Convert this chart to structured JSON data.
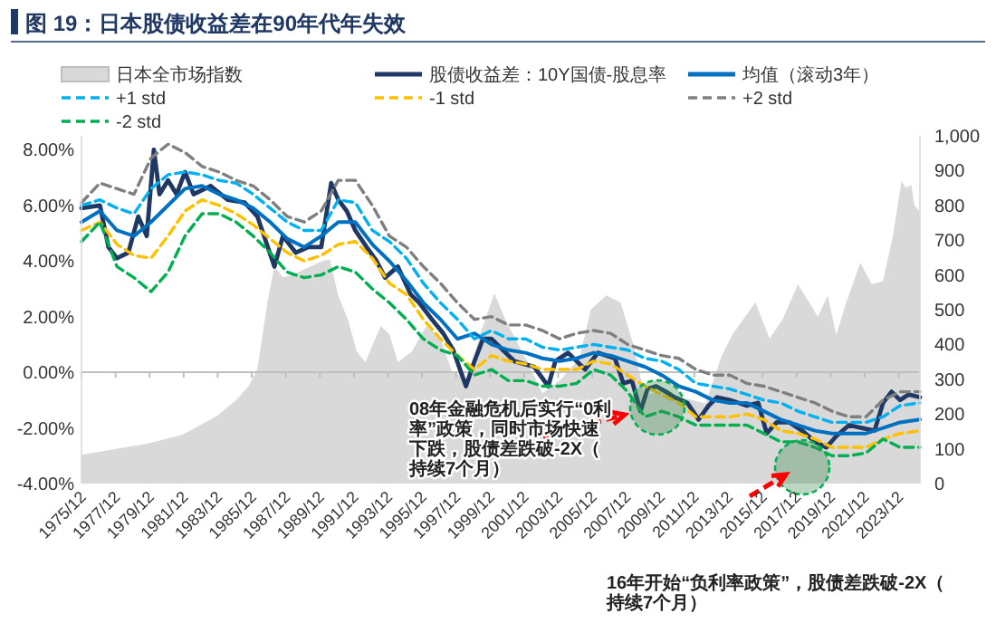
{
  "chart_data": {
    "type": "line",
    "title": "图 19：日本股债收益差在90年代年失效",
    "xlim": [
      "1975-12",
      "2025-03"
    ],
    "ylim": [
      -4,
      8.5
    ],
    "y2lim": [
      0,
      1000
    ],
    "xticks": [
      {
        "value": "1975-12",
        "label": "1975/12"
      },
      {
        "value": "1977-12",
        "label": "1977/12"
      },
      {
        "value": "1979-12",
        "label": "1979/12"
      },
      {
        "value": "1981-12",
        "label": "1981/12"
      },
      {
        "value": "1983-12",
        "label": "1983/12"
      },
      {
        "value": "1985-12",
        "label": "1985/12"
      },
      {
        "value": "1987-12",
        "label": "1987/12"
      },
      {
        "value": "1989-12",
        "label": "1989/12"
      },
      {
        "value": "1991-12",
        "label": "1991/12"
      },
      {
        "value": "1993-12",
        "label": "1993/12"
      },
      {
        "value": "1995-12",
        "label": "1995/12"
      },
      {
        "value": "1997-12",
        "label": "1997/12"
      },
      {
        "value": "1999-12",
        "label": "1999/12"
      },
      {
        "value": "2001-12",
        "label": "2001/12"
      },
      {
        "value": "2003-12",
        "label": "2003/12"
      },
      {
        "value": "2005-12",
        "label": "2005/12"
      },
      {
        "value": "2007-12",
        "label": "2007/12"
      },
      {
        "value": "2009-12",
        "label": "2009/12"
      },
      {
        "value": "2011-12",
        "label": "2011/12"
      },
      {
        "value": "2013-12",
        "label": "2013/12"
      },
      {
        "value": "2015-12",
        "label": "2015/12"
      },
      {
        "value": "2017-12",
        "label": "2017/12"
      },
      {
        "value": "2019-12",
        "label": "2019/12"
      },
      {
        "value": "2021-12",
        "label": "2021/12"
      },
      {
        "value": "2023-12",
        "label": "2023/12"
      }
    ],
    "yticks": [
      {
        "value": -4,
        "label": "-4.00%"
      },
      {
        "value": -2,
        "label": "-2.00%"
      },
      {
        "value": 0,
        "label": "0.00%"
      },
      {
        "value": 2,
        "label": "2.00%"
      },
      {
        "value": 4,
        "label": "4.00%"
      },
      {
        "value": 6,
        "label": "6.00%"
      },
      {
        "value": 8,
        "label": "8.00%"
      }
    ],
    "y2ticks": [
      0,
      100,
      200,
      300,
      400,
      500,
      600,
      700,
      800,
      900,
      {
        "value": 1000,
        "label": "1,000"
      }
    ],
    "legend": "top",
    "grid": false,
    "marker": "none",
    "ref_lines": [
      {
        "axis": "y",
        "value": 0,
        "color": "#bfbfbf"
      }
    ],
    "annotations": [
      "08年金融危机后实行“0利率”政策，同时市场快速下跌，股债差跌破-2X（持续7个月）",
      "16年开始“负利率政策”，股债差跌破-2X（持续7个月）"
    ],
    "series": [
      {
        "name": "日本全市场指数",
        "type": "area",
        "axis": "y2",
        "color": "#d9d9d9",
        "x": [
          "1975-12",
          "1979-11",
          "1981-11",
          "1983-11",
          "1985-01",
          "1985-10",
          "1986-04",
          "1986-11",
          "1987-04",
          "1987-10",
          "1988-05",
          "1989-03",
          "1990-02",
          "1990-07",
          "1991-01",
          "1991-08",
          "1992-02",
          "1992-08",
          "1993-07",
          "1994-01",
          "1994-07",
          "1995-05",
          "1996-03",
          "1997-01",
          "1997-09",
          "1998-08",
          "1999-05",
          "2000-03",
          "2000-11",
          "2002-01",
          "2003-01",
          "2004-02",
          "2005-03",
          "2005-11",
          "2006-10",
          "2007-08",
          "2008-05",
          "2009-01",
          "2010-01",
          "2011-01",
          "2012-08",
          "2013-07",
          "2014-03",
          "2015-07",
          "2016-05",
          "2017-02",
          "2018-01",
          "2018-09",
          "2019-03",
          "2019-10",
          "2020-04",
          "2020-11",
          "2021-09",
          "2022-05",
          "2023-01",
          "2023-08",
          "2024-02",
          "2024-05",
          "2024-09",
          "2024-11",
          "2025-03"
        ],
        "values": [
          83,
          115,
          140,
          193,
          240,
          281,
          330,
          520,
          625,
          593,
          600,
          620,
          640,
          645,
          541,
          469,
          380,
          349,
          453,
          430,
          349,
          380,
          453,
          420,
          323,
          300,
          430,
          547,
          470,
          360,
          260,
          300,
          360,
          500,
          541,
          520,
          400,
          250,
          270,
          250,
          230,
          365,
          430,
          521,
          417,
          470,
          573,
          520,
          479,
          541,
          427,
          520,
          635,
          573,
          583,
          713,
          870,
          850,
          859,
          800,
          781
        ]
      },
      {
        "name": "股债收益差：10Y国债-股息率",
        "color": "#1f3864",
        "line_style": "solid",
        "x": [
          "1975-12",
          "1977-01",
          "1977-07",
          "1978-01",
          "1978-09",
          "1979-04",
          "1979-10",
          "1980-03",
          "1980-07",
          "1981-01",
          "1981-07",
          "1982-01",
          "1982-07",
          "1983-07",
          "1984-07",
          "1985-07",
          "1986-04",
          "1986-10",
          "1987-04",
          "1987-10",
          "1988-07",
          "1989-04",
          "1990-01",
          "1990-08",
          "1991-01",
          "1991-07",
          "1992-01",
          "1992-09",
          "1993-04",
          "1993-10",
          "1994-07",
          "1995-04",
          "1995-10",
          "1996-07",
          "1997-03",
          "1997-10",
          "1998-07",
          "1999-01",
          "1999-07",
          "2000-01",
          "2001-05",
          "2002-07",
          "2003-05",
          "2003-10",
          "2004-07",
          "2005-07",
          "2006-04",
          "2007-04",
          "2007-10",
          "2008-04",
          "2008-10",
          "2009-03",
          "2009-09",
          "2010-04",
          "2010-10",
          "2011-07",
          "2012-03",
          "2012-10",
          "2013-04",
          "2014-01",
          "2015-01",
          "2015-09",
          "2016-03",
          "2016-10",
          "2017-07",
          "2018-04",
          "2019-01",
          "2019-09",
          "2020-04",
          "2021-01",
          "2021-10",
          "2022-07",
          "2023-01",
          "2023-07",
          "2024-01",
          "2024-07",
          "2025-03"
        ],
        "values": [
          5.9,
          6.0,
          4.5,
          4.1,
          4.3,
          5.6,
          4.9,
          8.0,
          6.4,
          6.9,
          6.4,
          7.2,
          6.4,
          6.7,
          6.2,
          6.1,
          5.6,
          4.7,
          3.8,
          4.9,
          4.3,
          4.5,
          4.5,
          6.8,
          6.2,
          5.8,
          5.1,
          4.5,
          4.0,
          3.4,
          3.8,
          2.8,
          2.5,
          1.9,
          1.4,
          0.8,
          -0.5,
          0.4,
          1.2,
          1.2,
          0.4,
          0.2,
          -0.5,
          0.4,
          0.7,
          0.1,
          0.7,
          0.5,
          -0.4,
          -0.3,
          -1.4,
          -0.6,
          -0.5,
          -0.7,
          -0.9,
          -1.1,
          -1.7,
          -1.2,
          -0.9,
          -1.0,
          -1.2,
          -1.1,
          -2.2,
          -1.8,
          -1.8,
          -2.1,
          -2.5,
          -2.7,
          -2.3,
          -1.9,
          -2.0,
          -2.1,
          -1.1,
          -0.7,
          -1.0,
          -0.8,
          -0.9
        ]
      },
      {
        "name": "均值（滚动3年）",
        "color": "#0070c0",
        "line_style": "solid",
        "x": [
          "1975-12",
          "1977-01",
          "1978-01",
          "1979-01",
          "1980-01",
          "1981-01",
          "1982-01",
          "1983-01",
          "1984-01",
          "1985-01",
          "1986-01",
          "1987-01",
          "1988-01",
          "1989-01",
          "1990-01",
          "1991-01",
          "1992-01",
          "1993-01",
          "1994-01",
          "1995-01",
          "1996-01",
          "1997-01",
          "1998-01",
          "1999-01",
          "2000-01",
          "2001-01",
          "2002-01",
          "2003-01",
          "2004-01",
          "2005-01",
          "2006-01",
          "2007-01",
          "2008-01",
          "2009-01",
          "2010-01",
          "2011-01",
          "2012-01",
          "2013-01",
          "2014-01",
          "2015-01",
          "2016-01",
          "2017-01",
          "2018-01",
          "2019-01",
          "2020-01",
          "2021-01",
          "2022-01",
          "2023-01",
          "2024-01",
          "2025-03"
        ],
        "values": [
          5.4,
          5.8,
          5.1,
          4.9,
          5.4,
          6.0,
          6.6,
          6.7,
          6.4,
          6.2,
          5.9,
          5.4,
          4.8,
          4.5,
          4.9,
          5.4,
          5.4,
          4.6,
          4.0,
          3.3,
          2.5,
          1.9,
          1.2,
          1.4,
          1.0,
          0.8,
          0.7,
          0.5,
          0.4,
          0.5,
          0.7,
          0.6,
          0.4,
          0.2,
          -0.1,
          -0.5,
          -0.7,
          -1.0,
          -1.1,
          -1.1,
          -1.4,
          -1.7,
          -1.9,
          -2.1,
          -2.2,
          -2.2,
          -2.2,
          -2.0,
          -1.8,
          -1.7
        ]
      },
      {
        "name": "+1 std",
        "color": "#00b0f0",
        "line_style": "dashed",
        "x": [
          "1975-12",
          "1977-01",
          "1978-01",
          "1979-01",
          "1980-01",
          "1981-01",
          "1982-01",
          "1983-01",
          "1984-01",
          "1985-01",
          "1986-01",
          "1987-01",
          "1988-01",
          "1989-01",
          "1990-01",
          "1991-01",
          "1992-01",
          "1993-01",
          "1994-01",
          "1995-01",
          "1996-01",
          "1997-01",
          "1998-01",
          "1999-01",
          "2000-01",
          "2001-01",
          "2002-01",
          "2003-01",
          "2004-01",
          "2005-01",
          "2006-01",
          "2007-01",
          "2008-01",
          "2009-01",
          "2010-01",
          "2011-01",
          "2012-01",
          "2013-01",
          "2014-01",
          "2015-01",
          "2016-01",
          "2017-01",
          "2018-01",
          "2019-01",
          "2020-01",
          "2021-01",
          "2022-01",
          "2023-01",
          "2024-01",
          "2025-03"
        ],
        "values": [
          6.0,
          6.2,
          5.9,
          5.7,
          6.6,
          7.1,
          7.2,
          7.1,
          6.9,
          6.8,
          6.4,
          5.9,
          5.4,
          5.1,
          5.1,
          6.2,
          6.1,
          5.1,
          4.7,
          4.1,
          3.2,
          2.5,
          1.9,
          1.2,
          1.5,
          1.2,
          1.2,
          0.9,
          0.8,
          0.9,
          1.0,
          0.9,
          0.8,
          0.5,
          0.4,
          0.1,
          -0.4,
          -0.5,
          -0.6,
          -0.8,
          -1.0,
          -1.1,
          -1.4,
          -1.6,
          -1.8,
          -1.8,
          -1.8,
          -1.6,
          -1.2,
          -1.1
        ]
      },
      {
        "name": "-1 std",
        "color": "#ffc000",
        "line_style": "dashed",
        "x": [
          "1975-12",
          "1977-01",
          "1978-01",
          "1979-01",
          "1980-01",
          "1981-01",
          "1982-01",
          "1983-01",
          "1984-01",
          "1985-01",
          "1986-01",
          "1987-01",
          "1988-01",
          "1989-01",
          "1990-01",
          "1991-01",
          "1992-01",
          "1993-01",
          "1994-01",
          "1995-01",
          "1996-01",
          "1997-01",
          "1998-01",
          "1999-01",
          "2000-01",
          "2001-01",
          "2002-01",
          "2003-01",
          "2004-01",
          "2005-01",
          "2006-01",
          "2007-01",
          "2008-01",
          "2009-01",
          "2010-01",
          "2011-01",
          "2012-01",
          "2013-01",
          "2014-01",
          "2015-01",
          "2016-01",
          "2017-01",
          "2018-01",
          "2019-01",
          "2020-01",
          "2021-01",
          "2022-01",
          "2023-01",
          "2024-01",
          "2025-03"
        ],
        "values": [
          5.1,
          5.4,
          4.6,
          4.2,
          4.1,
          4.9,
          5.8,
          6.2,
          6.0,
          5.7,
          5.3,
          4.8,
          4.3,
          4.0,
          4.2,
          4.6,
          4.7,
          4.1,
          3.2,
          2.8,
          1.9,
          1.2,
          0.6,
          0.1,
          0.6,
          0.4,
          0.3,
          0.1,
          0.1,
          0.1,
          0.4,
          0.3,
          -0.1,
          -0.5,
          -0.8,
          -1.1,
          -1.6,
          -1.6,
          -1.6,
          -1.5,
          -1.7,
          -2.1,
          -2.2,
          -2.4,
          -2.7,
          -2.7,
          -2.7,
          -2.4,
          -2.2,
          -2.1
        ]
      },
      {
        "name": "+2 std",
        "color": "#7f7f7f",
        "line_style": "dashed",
        "x": [
          "1975-12",
          "1977-01",
          "1978-01",
          "1979-01",
          "1980-01",
          "1981-01",
          "1982-01",
          "1983-01",
          "1984-01",
          "1985-01",
          "1986-01",
          "1987-01",
          "1988-01",
          "1989-01",
          "1990-01",
          "1991-01",
          "1992-01",
          "1993-01",
          "1994-01",
          "1995-01",
          "1996-01",
          "1997-01",
          "1998-01",
          "1999-01",
          "2000-01",
          "2001-01",
          "2002-01",
          "2003-01",
          "2004-01",
          "2005-01",
          "2006-01",
          "2007-01",
          "2008-01",
          "2009-01",
          "2010-01",
          "2011-01",
          "2012-01",
          "2013-01",
          "2014-01",
          "2015-01",
          "2016-01",
          "2017-01",
          "2018-01",
          "2019-01",
          "2020-01",
          "2021-01",
          "2022-01",
          "2023-01",
          "2024-01",
          "2025-03"
        ],
        "values": [
          6.1,
          6.8,
          6.6,
          6.4,
          7.7,
          8.2,
          7.9,
          7.4,
          7.2,
          6.9,
          6.7,
          6.2,
          5.6,
          5.4,
          5.8,
          6.9,
          6.9,
          6.0,
          4.9,
          4.5,
          3.8,
          3.2,
          2.5,
          1.9,
          2.0,
          1.7,
          1.7,
          1.5,
          1.2,
          1.4,
          1.5,
          1.4,
          1.0,
          0.8,
          0.6,
          0.5,
          0.1,
          -0.1,
          -0.1,
          -0.4,
          -0.5,
          -0.7,
          -0.9,
          -1.1,
          -1.4,
          -1.6,
          -1.6,
          -1.0,
          -0.7,
          -0.7
        ]
      },
      {
        "name": "-2 std",
        "color": "#00b050",
        "line_style": "dashed",
        "x": [
          "1975-12",
          "1977-01",
          "1978-01",
          "1979-01",
          "1980-01",
          "1981-01",
          "1982-01",
          "1983-01",
          "1984-01",
          "1985-01",
          "1986-01",
          "1987-01",
          "1988-01",
          "1989-01",
          "1990-01",
          "1991-01",
          "1992-01",
          "1993-01",
          "1994-01",
          "1995-01",
          "1996-01",
          "1997-01",
          "1998-01",
          "1999-01",
          "2000-01",
          "2001-01",
          "2002-01",
          "2003-01",
          "2004-01",
          "2005-01",
          "2006-01",
          "2007-01",
          "2008-01",
          "2009-01",
          "2010-01",
          "2011-01",
          "2012-01",
          "2013-01",
          "2014-01",
          "2015-01",
          "2016-01",
          "2017-01",
          "2018-01",
          "2019-01",
          "2020-01",
          "2021-01",
          "2022-01",
          "2023-01",
          "2024-01",
          "2025-03"
        ],
        "values": [
          4.7,
          5.4,
          3.8,
          3.4,
          2.9,
          3.6,
          4.9,
          5.7,
          5.7,
          5.4,
          4.9,
          4.3,
          3.6,
          3.4,
          3.5,
          3.8,
          3.6,
          3.0,
          2.5,
          1.9,
          1.2,
          0.8,
          0.6,
          -0.1,
          0.1,
          -0.3,
          -0.3,
          -0.5,
          -0.5,
          -0.4,
          0.1,
          -0.1,
          -0.7,
          -1.6,
          -1.4,
          -1.6,
          -1.9,
          -1.9,
          -1.9,
          -1.9,
          -2.2,
          -2.5,
          -2.5,
          -2.7,
          -3.0,
          -3.0,
          -2.9,
          -2.4,
          -2.7,
          -2.7
        ]
      }
    ]
  }
}
